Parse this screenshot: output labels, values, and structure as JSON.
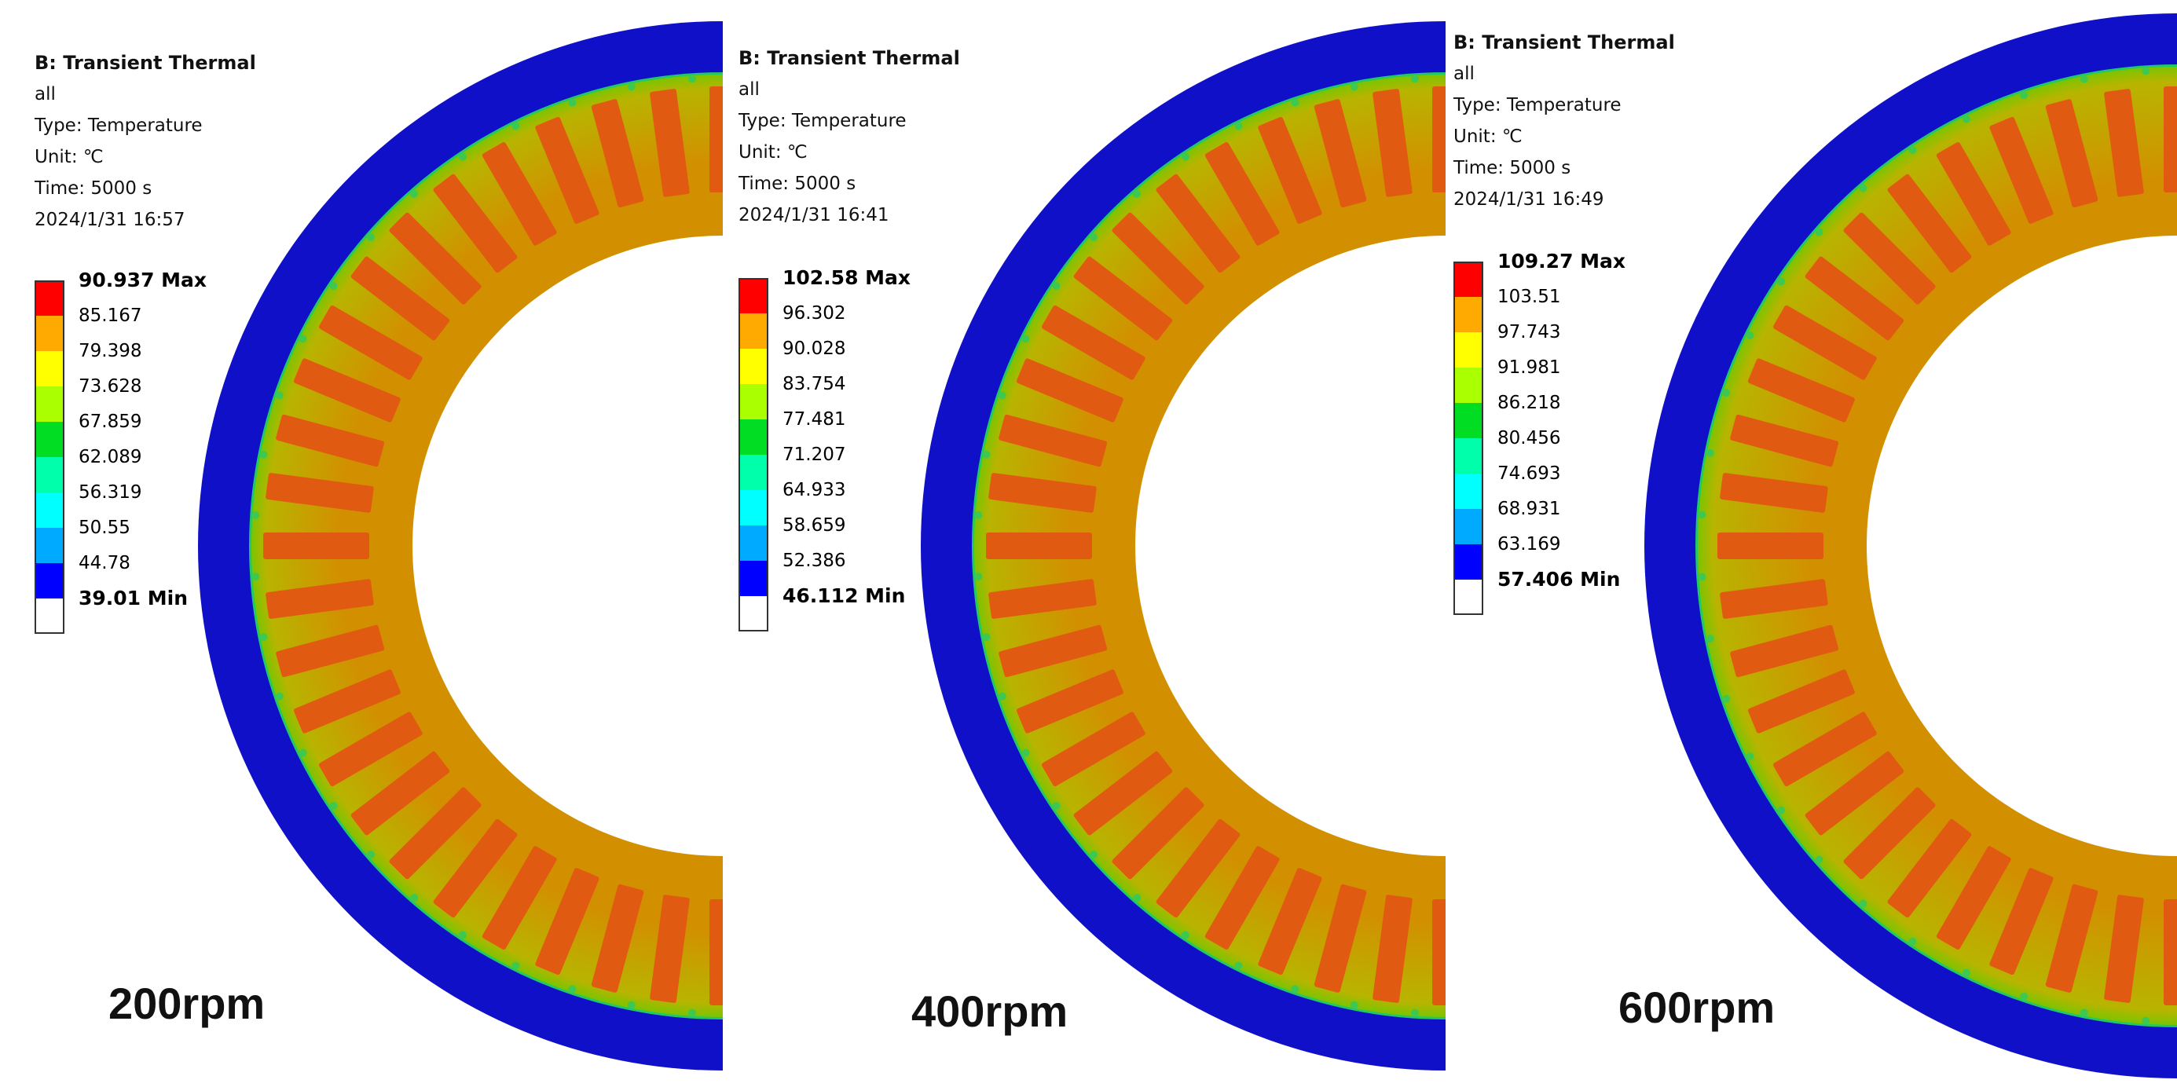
{
  "panels": [
    {
      "title": "B: Transient Thermal",
      "object": "all",
      "type_line": "Type: Temperature",
      "unit_line": "Unit: ℃",
      "time_line": "Time: 5000 s",
      "timestamp": "2024/1/31 16:57",
      "legend": {
        "max_label": "90.937 Max",
        "values": [
          "85.167",
          "79.398",
          "73.628",
          "67.859",
          "62.089",
          "56.319",
          "50.55",
          "44.78"
        ],
        "min_label": "39.01 Min"
      },
      "speed_label": "200rpm"
    },
    {
      "title": "B: Transient Thermal",
      "object": "all",
      "type_line": "Type: Temperature",
      "unit_line": "Unit: ℃",
      "time_line": "Time: 5000 s",
      "timestamp": "2024/1/31 16:41",
      "legend": {
        "max_label": "102.58 Max",
        "values": [
          "96.302",
          "90.028",
          "83.754",
          "77.481",
          "71.207",
          "64.933",
          "58.659",
          "52.386"
        ],
        "min_label": "46.112 Min"
      },
      "speed_label": "400rpm"
    },
    {
      "title": "B: Transient Thermal",
      "object": "all",
      "type_line": "Type: Temperature",
      "unit_line": "Unit: ℃",
      "time_line": "Time: 5000 s",
      "timestamp": "2024/1/31 16:49",
      "legend": {
        "max_label": "109.27 Max",
        "values": [
          "103.51",
          "97.743",
          "91.981",
          "86.218",
          "80.456",
          "74.693",
          "68.931",
          "63.169"
        ],
        "min_label": "57.406 Min"
      },
      "speed_label": "600rpm"
    }
  ],
  "legend_colors": [
    "#ff0000",
    "#ffaa00",
    "#ffff00",
    "#aaff00",
    "#00dd22",
    "#00ffaa",
    "#00ffff",
    "#00aaff",
    "#0000ff"
  ],
  "field_colors": {
    "housing": "#1010c8",
    "housing_edge": "#2a3ad8",
    "interface": "#22c864",
    "yoke_outer": "#b8b400",
    "core": "#d29000",
    "winding": "#e05a12"
  }
}
